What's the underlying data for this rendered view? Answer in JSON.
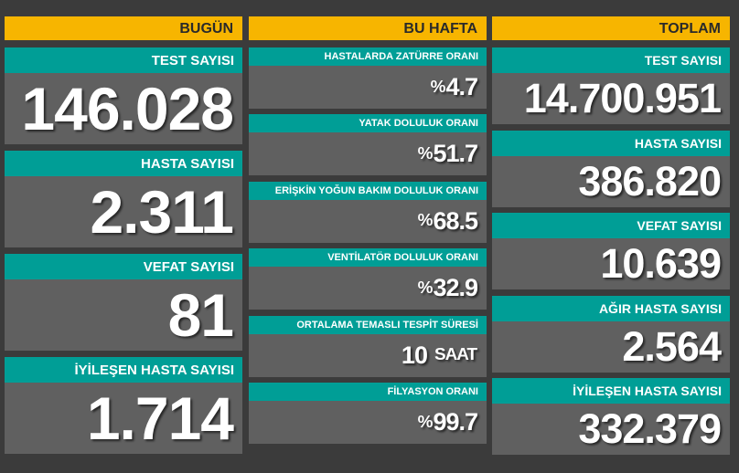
{
  "columns": [
    {
      "header": "BUGÜN",
      "items": [
        {
          "label": "TEST SAYISI",
          "value": "146.028"
        },
        {
          "label": "HASTA SAYISI",
          "value": "2.311"
        },
        {
          "label": "VEFAT SAYISI",
          "value": "81"
        },
        {
          "label": "İYİLEŞEN HASTA SAYISI",
          "value": "1.714"
        }
      ]
    },
    {
      "header": "BU HAFTA",
      "items": [
        {
          "label": "HASTALARDA ZATÜRRE ORANI",
          "prefix": "%",
          "value": "4.7"
        },
        {
          "label": "YATAK DOLULUK ORANI",
          "prefix": "%",
          "value": "51.7"
        },
        {
          "label": "ERİŞKİN YOĞUN BAKIM DOLULUK ORANI",
          "prefix": "%",
          "value": "68.5"
        },
        {
          "label": "VENTİLATÖR DOLULUK ORANI",
          "prefix": "%",
          "value": "32.9"
        },
        {
          "label": "ORTALAMA TEMASLI TESPİT SÜRESİ",
          "value": "10",
          "unit": "SAAT"
        },
        {
          "label": "FİLYASYON ORANI",
          "prefix": "%",
          "value": "99.7"
        }
      ]
    },
    {
      "header": "TOPLAM",
      "items": [
        {
          "label": "TEST SAYISI",
          "value": "14.700.951"
        },
        {
          "label": "HASTA SAYISI",
          "value": "386.820"
        },
        {
          "label": "VEFAT SAYISI",
          "value": "10.639"
        },
        {
          "label": "AĞIR HASTA SAYISI",
          "value": "2.564"
        },
        {
          "label": "İYİLEŞEN HASTA SAYISI",
          "value": "332.379"
        }
      ]
    }
  ]
}
